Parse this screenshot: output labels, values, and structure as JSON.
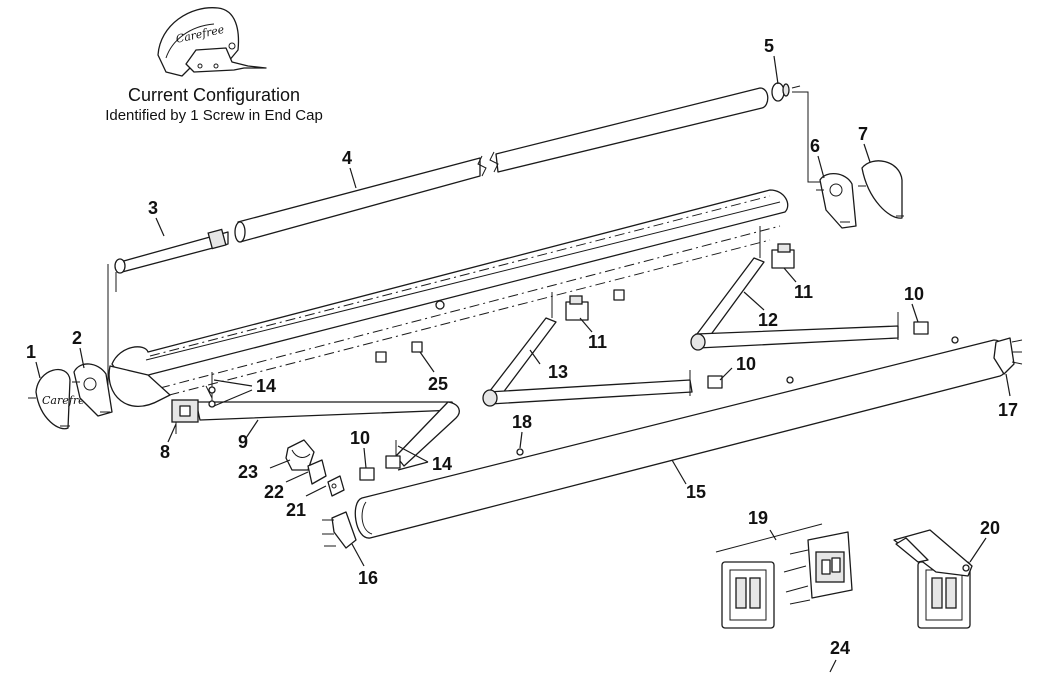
{
  "header": {
    "title": "Current Configuration",
    "subtitle": "Identified by 1 Screw in End Cap",
    "logo_text": "Carefree"
  },
  "callouts": [
    "1",
    "2",
    "3",
    "4",
    "5",
    "6",
    "7",
    "8",
    "9",
    "10",
    "10",
    "10",
    "11",
    "11",
    "12",
    "13",
    "14",
    "14",
    "15",
    "16",
    "17",
    "18",
    "19",
    "20",
    "21",
    "22",
    "23",
    "24",
    "25"
  ],
  "switch_panel": {
    "rocker_labels": [
      "",
      ""
    ]
  }
}
